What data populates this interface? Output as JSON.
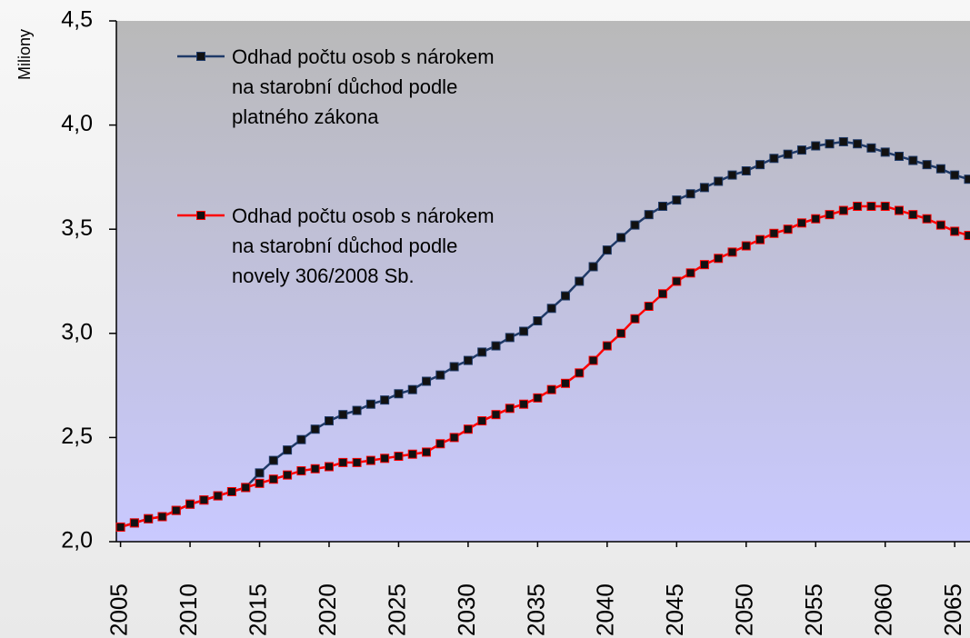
{
  "chart_data": {
    "type": "line",
    "y_axis_label": "Miliony",
    "x": [
      2005,
      2006,
      2007,
      2008,
      2009,
      2010,
      2011,
      2012,
      2013,
      2014,
      2015,
      2016,
      2017,
      2018,
      2019,
      2020,
      2021,
      2022,
      2023,
      2024,
      2025,
      2026,
      2027,
      2028,
      2029,
      2030,
      2031,
      2032,
      2033,
      2034,
      2035,
      2036,
      2037,
      2038,
      2039,
      2040,
      2041,
      2042,
      2043,
      2044,
      2045,
      2046,
      2047,
      2048,
      2049,
      2050,
      2051,
      2052,
      2053,
      2054,
      2055,
      2056,
      2057,
      2058,
      2059,
      2060,
      2061,
      2062,
      2063,
      2064,
      2065,
      2066
    ],
    "series": [
      {
        "name": "Odhad počtu osob s nárokem na starobní důchod podle platného zákona",
        "color": "#1f3a68",
        "values": [
          2.07,
          2.09,
          2.11,
          2.12,
          2.15,
          2.18,
          2.2,
          2.22,
          2.24,
          2.26,
          2.33,
          2.39,
          2.44,
          2.49,
          2.54,
          2.58,
          2.61,
          2.63,
          2.66,
          2.68,
          2.71,
          2.73,
          2.77,
          2.8,
          2.84,
          2.87,
          2.91,
          2.94,
          2.98,
          3.01,
          3.06,
          3.12,
          3.18,
          3.25,
          3.32,
          3.4,
          3.46,
          3.52,
          3.57,
          3.61,
          3.64,
          3.67,
          3.7,
          3.73,
          3.76,
          3.78,
          3.81,
          3.84,
          3.86,
          3.88,
          3.9,
          3.91,
          3.92,
          3.91,
          3.89,
          3.87,
          3.85,
          3.83,
          3.81,
          3.79,
          3.76,
          3.74
        ]
      },
      {
        "name": "Odhad počtu osob s nárokem na starobní důchod podle novely 306/2008 Sb.",
        "color": "#ff0000",
        "values": [
          2.07,
          2.09,
          2.11,
          2.12,
          2.15,
          2.18,
          2.2,
          2.22,
          2.24,
          2.26,
          2.28,
          2.3,
          2.32,
          2.34,
          2.35,
          2.36,
          2.38,
          2.38,
          2.39,
          2.4,
          2.41,
          2.42,
          2.43,
          2.47,
          2.5,
          2.54,
          2.58,
          2.61,
          2.64,
          2.66,
          2.69,
          2.73,
          2.76,
          2.81,
          2.87,
          2.94,
          3.0,
          3.07,
          3.13,
          3.19,
          3.25,
          3.29,
          3.33,
          3.36,
          3.39,
          3.42,
          3.45,
          3.48,
          3.5,
          3.53,
          3.55,
          3.57,
          3.59,
          3.61,
          3.61,
          3.61,
          3.59,
          3.57,
          3.55,
          3.52,
          3.49,
          3.47
        ]
      }
    ],
    "marker_color": "#111111",
    "xlim": [
      2004.7,
      2066.1
    ],
    "xticks": [
      2005,
      2010,
      2015,
      2020,
      2025,
      2030,
      2035,
      2040,
      2045,
      2050,
      2055,
      2060,
      2065
    ],
    "ylim": [
      2.0,
      4.5
    ],
    "yticks": [
      {
        "value": 2.0,
        "label": "2,0"
      },
      {
        "value": 2.5,
        "label": "2,5"
      },
      {
        "value": 3.0,
        "label": "3,0"
      },
      {
        "value": 3.5,
        "label": "3,5"
      },
      {
        "value": 4.0,
        "label": "4,0"
      },
      {
        "value": 4.5,
        "label": "4,5"
      }
    ],
    "legend": "upper left"
  }
}
